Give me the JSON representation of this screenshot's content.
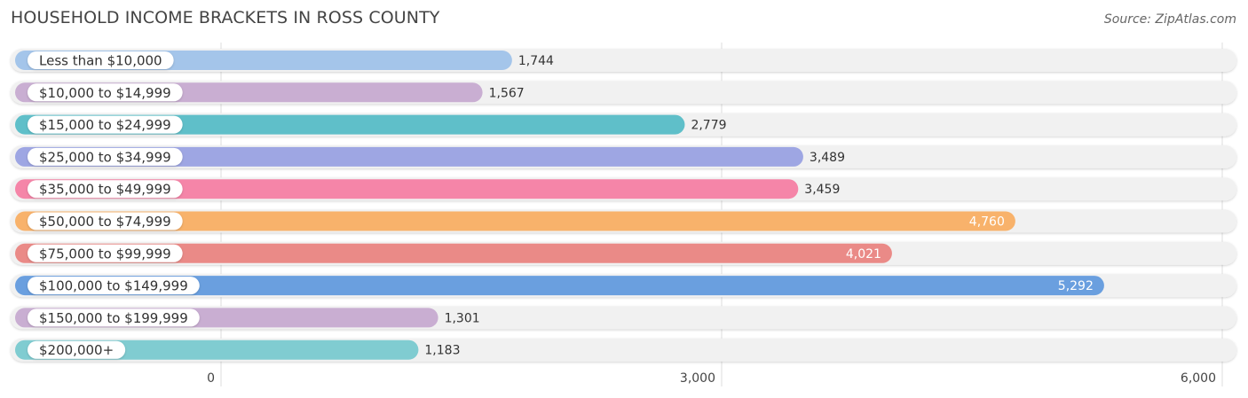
{
  "title": "HOUSEHOLD INCOME BRACKETS IN ROSS COUNTY",
  "source": "Source: ZipAtlas.com",
  "chart_data": {
    "type": "bar",
    "orientation": "horizontal",
    "categories": [
      "Less than $10,000",
      "$10,000 to $14,999",
      "$15,000 to $24,999",
      "$25,000 to $34,999",
      "$35,000 to $49,999",
      "$50,000 to $74,999",
      "$75,000 to $99,999",
      "$100,000 to $149,999",
      "$150,000 to $199,999",
      "$200,000+"
    ],
    "values": [
      1744,
      1567,
      2779,
      3489,
      3459,
      4760,
      4021,
      5292,
      1301,
      1183
    ],
    "value_labels": [
      "1,744",
      "1,567",
      "2,779",
      "3,489",
      "3,459",
      "4,760",
      "4,021",
      "5,292",
      "1,301",
      "1,183"
    ],
    "colors": [
      "#a4c5ea",
      "#c9aed2",
      "#5fbfc9",
      "#9ea6e3",
      "#f585a8",
      "#f8b26b",
      "#ea8a87",
      "#6a9fdf",
      "#c9aed2",
      "#80ccd1"
    ],
    "xlim": [
      0,
      6000
    ],
    "xticks": [
      0,
      3000,
      6000
    ],
    "xtick_labels": [
      "0",
      "3,000",
      "6,000"
    ],
    "grid": true
  }
}
